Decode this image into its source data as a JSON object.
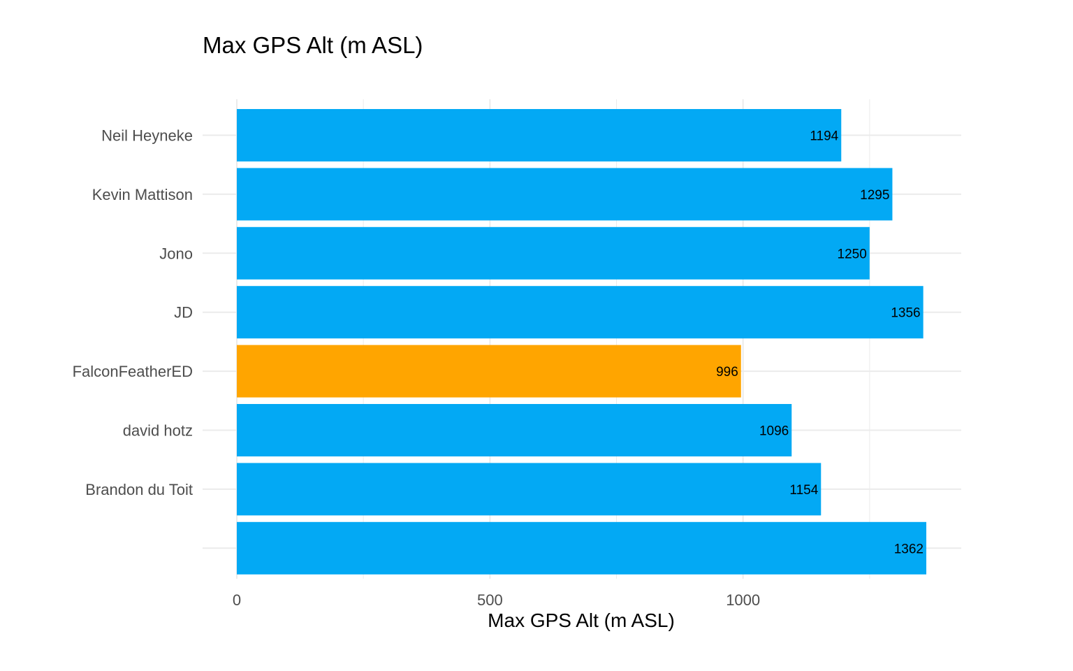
{
  "chart_data": {
    "type": "bar",
    "orientation": "horizontal",
    "title": "Max GPS Alt (m ASL)",
    "xlabel": "Max GPS Alt (m ASL)",
    "ylabel": "",
    "xlim": [
      -68,
      1362
    ],
    "x_ticks": [
      0,
      500,
      1000
    ],
    "minor_x_ticks": [
      250,
      750,
      1250
    ],
    "grid": true,
    "legend": "none",
    "categories": [
      "Neil Heyneke",
      "Kevin Mattison",
      "Jono",
      "JD",
      "FalconFeatherED",
      "david hotz",
      "Brandon du Toit",
      ""
    ],
    "values": [
      1194,
      1295,
      1250,
      1356,
      996,
      1096,
      1154,
      1362
    ],
    "highlight_index": 4,
    "colors": {
      "default": "#03A9F4",
      "highlight": "#FFA500",
      "grid": "#EBEBEB",
      "axis_text": "#4D4D4D",
      "label_text": "#000000"
    }
  }
}
